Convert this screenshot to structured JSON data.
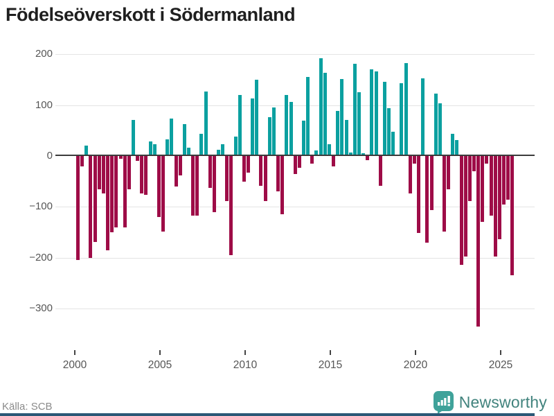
{
  "title": "Födelseöverskott i Södermanland",
  "footer": {
    "source": "Källa: SCB",
    "brand": "Newsworthy"
  },
  "colors": {
    "positive": "#0ba0a0",
    "negative": "#9e0c47",
    "grid": "#e4e4e4",
    "zero_line": "#3b3b3b",
    "axis_text": "#555555",
    "title_text": "#1f1f1f",
    "source_text": "#8a8a8a",
    "brand_icon": "#3fa29a",
    "brand_text": "#41837d",
    "bottom_bar": "#2b5876"
  },
  "chart_data": {
    "type": "bar",
    "title": "Födelseöverskott i Södermanland",
    "frequency": "quarterly",
    "start_year": 2000,
    "start_quarter": 1,
    "xticks": [
      2000,
      2005,
      2010,
      2015,
      2020,
      2025
    ],
    "yticks": [
      200,
      100,
      0,
      -100,
      -200,
      -300
    ],
    "ylim": [
      -350,
      210
    ],
    "grid": true,
    "legend": false,
    "values": [
      -205,
      -20,
      18,
      -200,
      -169,
      -65,
      -73,
      -185,
      -150,
      -140,
      -5,
      -140,
      -65,
      68,
      -10,
      -74,
      -76,
      26,
      20,
      -120,
      -149,
      30,
      71,
      -60,
      -38,
      60,
      14,
      -117,
      -117,
      41,
      124,
      -62,
      -110,
      9,
      21,
      -88,
      -195,
      35,
      117,
      -51,
      -33,
      111,
      147,
      -58,
      -89,
      74,
      93,
      -69,
      -115,
      117,
      104,
      -35,
      -23,
      67,
      153,
      -15,
      8,
      190,
      161,
      21,
      -20,
      86,
      149,
      68,
      4,
      179,
      123,
      3,
      -8,
      168,
      164,
      -59,
      143,
      91,
      45,
      0,
      140,
      180,
      -73,
      -15,
      -151,
      150,
      -171,
      -106,
      120,
      101,
      -149,
      -65,
      41,
      29,
      -214,
      -197,
      -89,
      -30,
      -335,
      -130,
      -15,
      -117,
      -197,
      -164,
      -95,
      -86,
      -235
    ]
  }
}
